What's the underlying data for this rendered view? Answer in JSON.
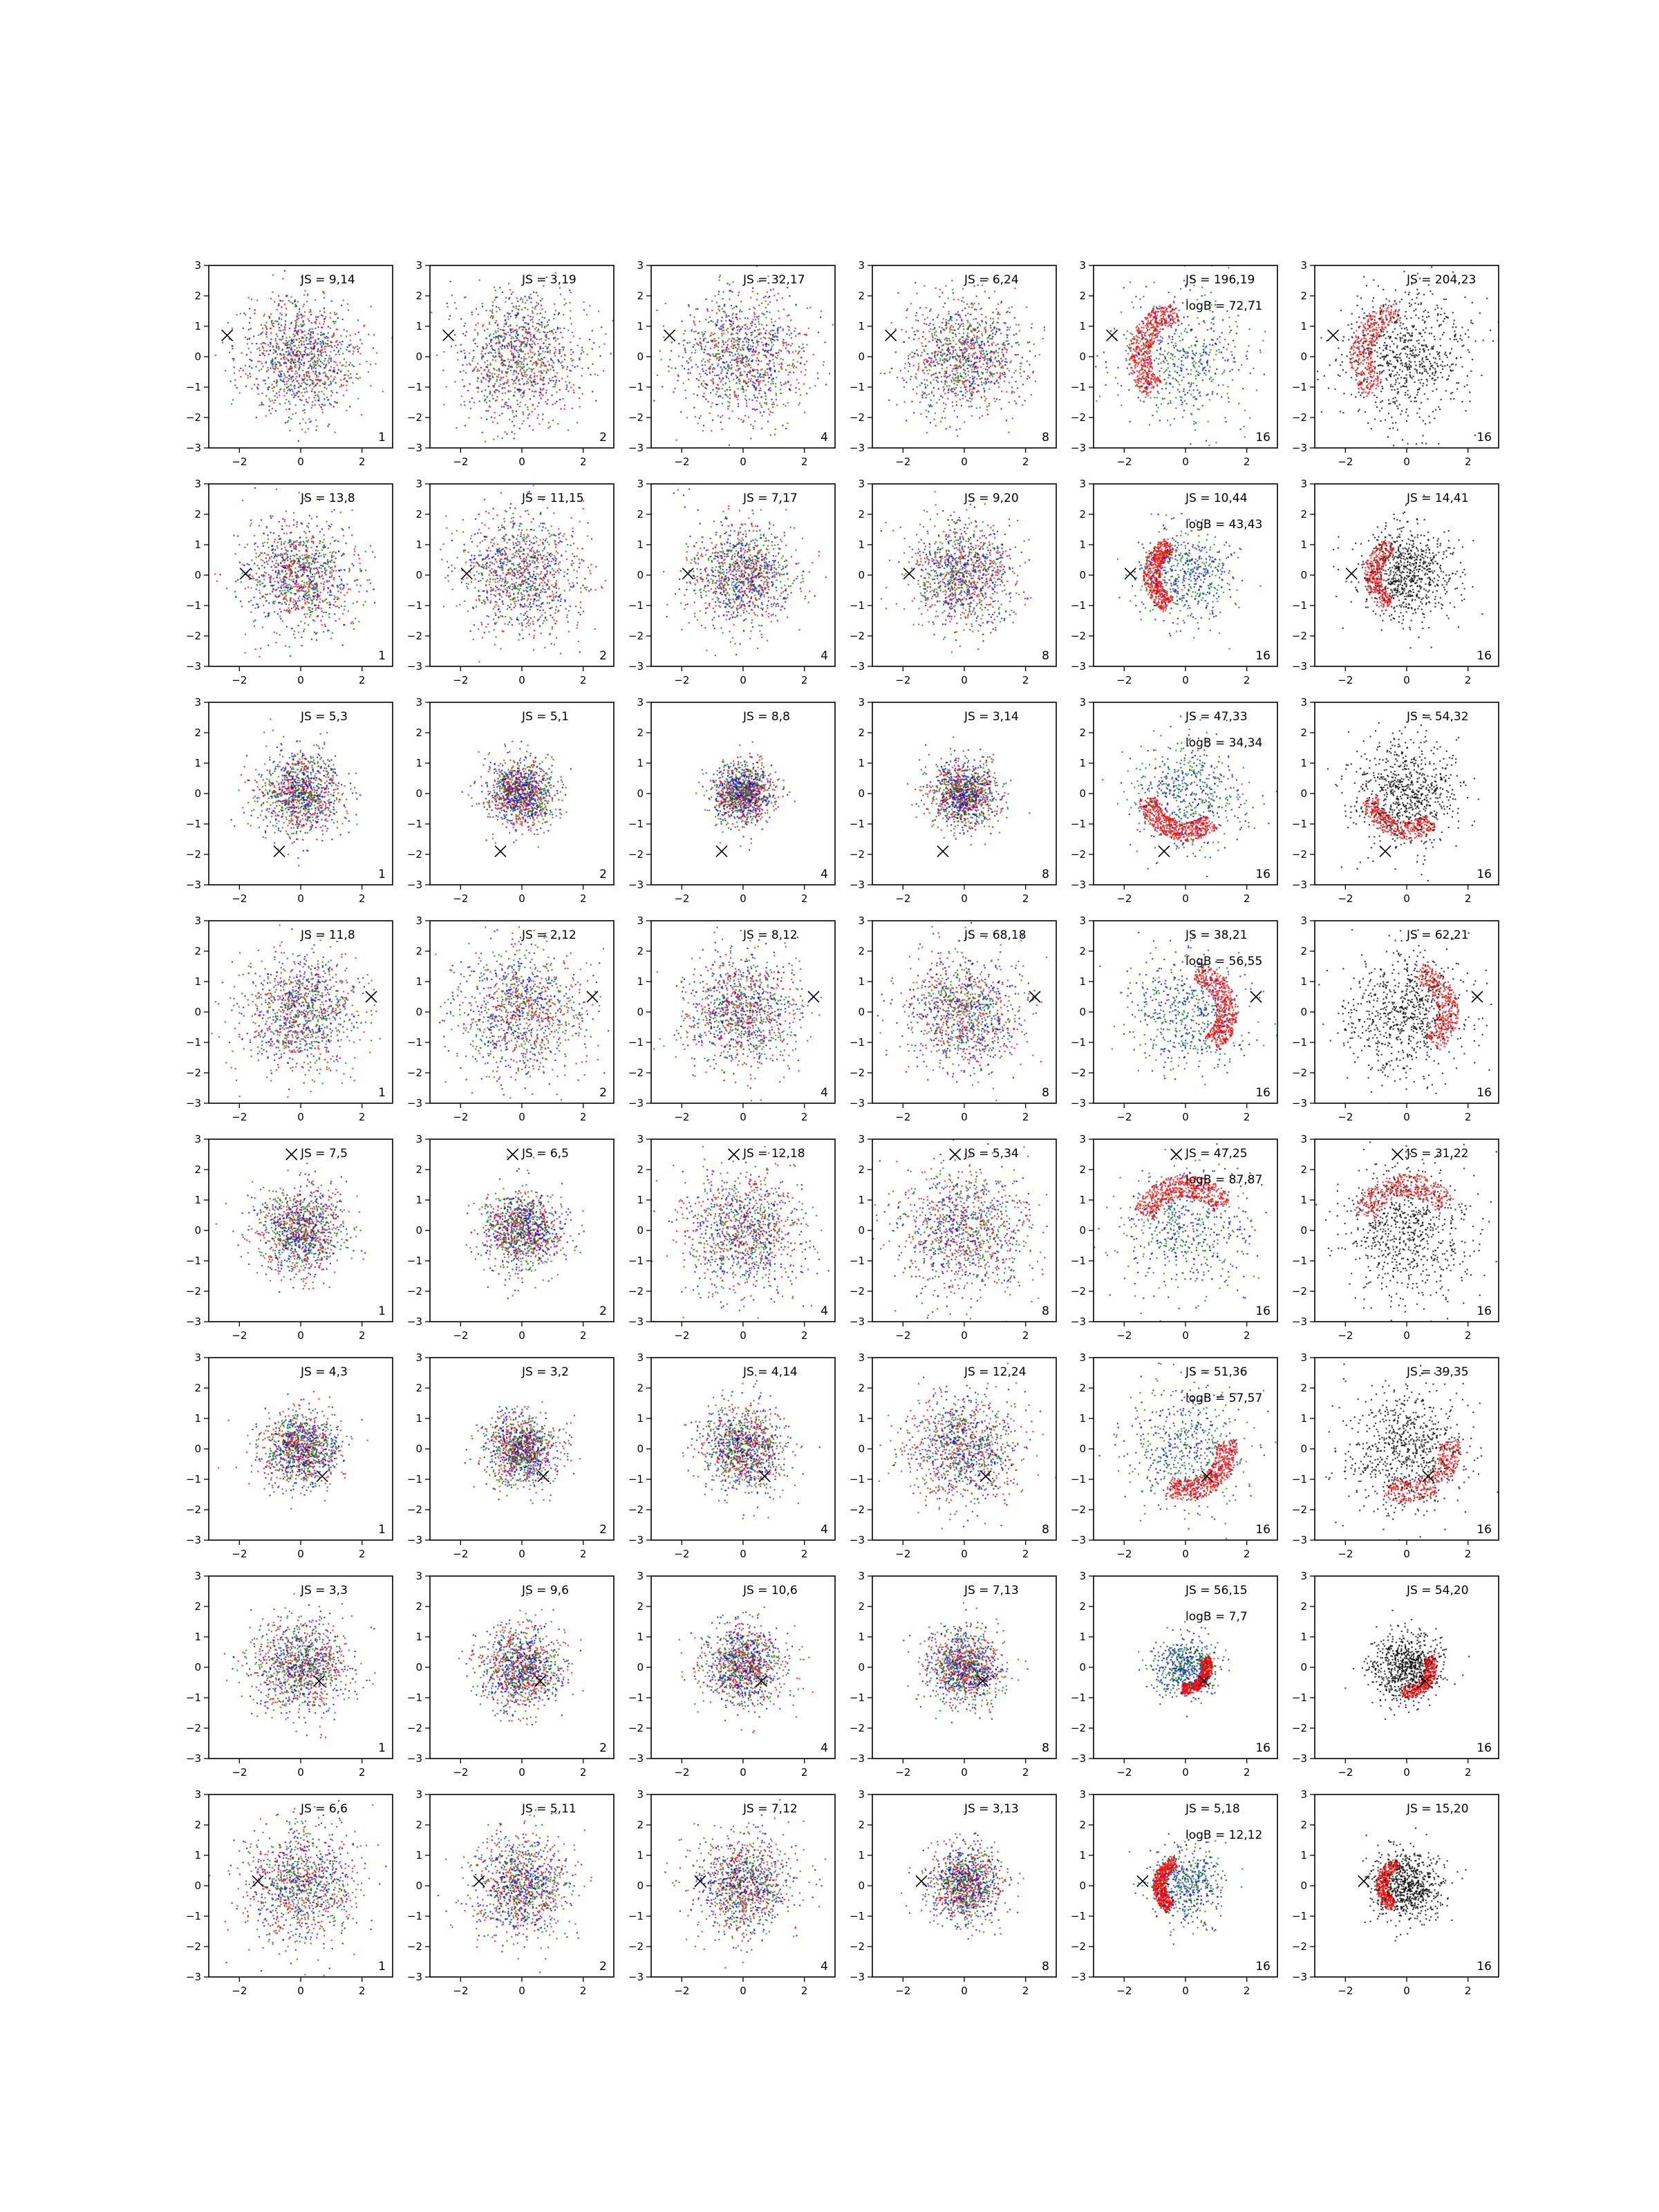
{
  "figure": {
    "xlim": [
      -3,
      3
    ],
    "ylim": [
      -3,
      3
    ],
    "x_ticks": [
      -2,
      0,
      2
    ],
    "y_ticks": [
      -3,
      -2,
      -1,
      0,
      1,
      2,
      3
    ],
    "x_tick_labels": [
      "−2",
      "0",
      "2"
    ],
    "y_tick_labels": [
      "−3",
      "−2",
      "−1",
      "0",
      "1",
      "2",
      "3"
    ]
  },
  "colors": {
    "red": "#ff0000",
    "green": "#008000",
    "blue": "#0000ff",
    "black": "#000000"
  },
  "chart_data": {
    "type": "scatter",
    "layout": "8 rows × 6 columns of scatter panels",
    "xlim": [
      -3,
      3
    ],
    "ylim": [
      -3,
      3
    ],
    "marker": "x",
    "panels": [
      {
        "row": 1,
        "panel_label": [
          "1",
          "2",
          "4",
          "8",
          "16",
          "16"
        ],
        "js": [
          "JS = 9,14",
          "JS = 3,19",
          "JS = 32,17",
          "JS = 6,24",
          "JS = 196,19",
          "JS = 204,23"
        ],
        "logB": [
          "",
          "",
          "",
          "",
          "logB = 72,71",
          ""
        ],
        "marker_xy": [
          -2.4,
          0.7
        ],
        "spread": [
          1.3,
          1.45,
          1.45,
          1.3,
          1.5,
          1.5
        ]
      },
      {
        "row": 2,
        "panel_label": [
          "1",
          "2",
          "4",
          "8",
          "16",
          "16"
        ],
        "js": [
          "JS = 13,8",
          "JS = 11,15",
          "JS = 7,17",
          "JS = 9,20",
          "JS = 10,44",
          "JS = 14,41"
        ],
        "logB": [
          "",
          "",
          "",
          "",
          "logB = 43,43",
          ""
        ],
        "marker_xy": [
          -1.8,
          0.05
        ],
        "spread": [
          1.25,
          1.4,
          1.2,
          1.15,
          1.1,
          1.1
        ]
      },
      {
        "row": 3,
        "panel_label": [
          "1",
          "2",
          "4",
          "8",
          "16",
          "16"
        ],
        "js": [
          "JS = 5,3",
          "JS = 5,1",
          "JS = 8,8",
          "JS = 3,14",
          "JS = 47,33",
          "JS = 54,32"
        ],
        "logB": [
          "",
          "",
          "",
          "",
          "logB = 34,34",
          ""
        ],
        "marker_xy": [
          -0.7,
          -1.9
        ],
        "spread": [
          0.95,
          0.75,
          0.7,
          0.75,
          1.25,
          1.2
        ]
      },
      {
        "row": 4,
        "panel_label": [
          "1",
          "2",
          "4",
          "8",
          "16",
          "16"
        ],
        "js": [
          "JS = 11,8",
          "JS = 2,12",
          "JS = 8,12",
          "JS = 68,18",
          "JS = 38,21",
          "JS = 62,21"
        ],
        "logB": [
          "",
          "",
          "",
          "",
          "logB = 56,55",
          ""
        ],
        "marker_xy": [
          2.3,
          0.5
        ],
        "spread": [
          1.3,
          1.45,
          1.3,
          1.3,
          1.35,
          1.35
        ]
      },
      {
        "row": 5,
        "panel_label": [
          "1",
          "2",
          "4",
          "8",
          "16",
          "16"
        ],
        "js": [
          "JS = 7,5",
          "JS = 6,5",
          "JS = 12,18",
          "JS = 5,34",
          "JS = 47,25",
          "JS = 31,22"
        ],
        "logB": [
          "",
          "",
          "",
          "",
          "logB = 87,87",
          ""
        ],
        "marker_xy": [
          -0.3,
          2.5
        ],
        "spread": [
          1.0,
          0.9,
          1.35,
          1.5,
          1.45,
          1.5
        ]
      },
      {
        "row": 6,
        "panel_label": [
          "1",
          "2",
          "4",
          "8",
          "16",
          "16"
        ],
        "js": [
          "JS = 4,3",
          "JS = 3,2",
          "JS = 4,14",
          "JS = 12,24",
          "JS = 51,36",
          "JS = 39,35"
        ],
        "logB": [
          "",
          "",
          "",
          "",
          "logB = 57,57",
          ""
        ],
        "marker_xy": [
          0.7,
          -0.9
        ],
        "spread": [
          0.85,
          0.8,
          0.95,
          1.25,
          1.35,
          1.4
        ]
      },
      {
        "row": 7,
        "panel_label": [
          "1",
          "2",
          "4",
          "8",
          "16",
          "16"
        ],
        "js": [
          "JS = 3,3",
          "JS = 9,6",
          "JS = 10,6",
          "JS = 7,13",
          "JS = 56,15",
          "JS = 54,20"
        ],
        "logB": [
          "",
          "",
          "",
          "",
          "logB = 7,7",
          ""
        ],
        "marker_xy": [
          0.6,
          -0.45
        ],
        "spread": [
          1.05,
          0.9,
          0.9,
          0.85,
          0.7,
          0.8
        ]
      },
      {
        "row": 8,
        "panel_label": [
          "1",
          "2",
          "4",
          "8",
          "16",
          "16"
        ],
        "js": [
          "JS = 6,6",
          "JS = 5,11",
          "JS = 7,12",
          "JS = 3,13",
          "JS = 5,18",
          "JS = 15,20"
        ],
        "logB": [
          "",
          "",
          "",
          "",
          "logB = 12,12",
          ""
        ],
        "marker_xy": [
          -1.4,
          0.15
        ],
        "spread": [
          1.25,
          1.15,
          1.1,
          0.85,
          0.85,
          0.8
        ]
      }
    ]
  }
}
